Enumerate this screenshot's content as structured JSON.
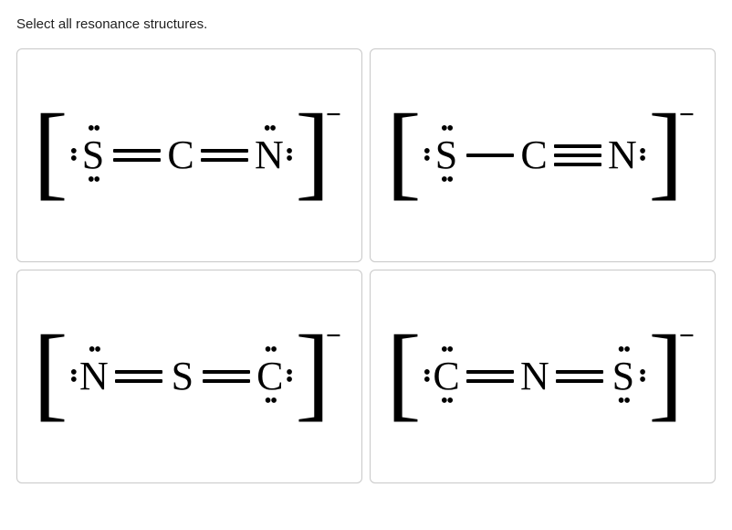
{
  "prompt": "Select all resonance structures.",
  "charge_symbol": "−",
  "cards": [
    {
      "id": "scn-dd",
      "bracket_left": "[",
      "bracket_right": "]",
      "atoms": [
        {
          "symbol": "S",
          "lp_top": true,
          "lp_bot": true,
          "lp_left": true,
          "lp_right": false
        },
        {
          "symbol": "C",
          "lp_top": false,
          "lp_bot": false,
          "lp_left": false,
          "lp_right": false
        },
        {
          "symbol": "N",
          "lp_top": true,
          "lp_bot": false,
          "lp_left": false,
          "lp_right": true
        }
      ],
      "bonds": [
        2,
        2
      ]
    },
    {
      "id": "scn-st",
      "bracket_left": "[",
      "bracket_right": "]",
      "atoms": [
        {
          "symbol": "S",
          "lp_top": true,
          "lp_bot": true,
          "lp_left": true,
          "lp_right": false
        },
        {
          "symbol": "C",
          "lp_top": false,
          "lp_bot": false,
          "lp_left": false,
          "lp_right": false
        },
        {
          "symbol": "N",
          "lp_top": false,
          "lp_bot": false,
          "lp_left": false,
          "lp_right": true
        }
      ],
      "bonds": [
        1,
        3
      ]
    },
    {
      "id": "nsc-dd",
      "bracket_left": "[",
      "bracket_right": "]",
      "atoms": [
        {
          "symbol": "N",
          "lp_top": true,
          "lp_bot": false,
          "lp_left": true,
          "lp_right": false
        },
        {
          "symbol": "S",
          "lp_top": false,
          "lp_bot": false,
          "lp_left": false,
          "lp_right": false
        },
        {
          "symbol": "C",
          "lp_top": true,
          "lp_bot": true,
          "lp_left": false,
          "lp_right": true
        }
      ],
      "bonds": [
        2,
        2
      ]
    },
    {
      "id": "cns-dd",
      "bracket_left": "[",
      "bracket_right": "]",
      "atoms": [
        {
          "symbol": "C",
          "lp_top": true,
          "lp_bot": true,
          "lp_left": true,
          "lp_right": false
        },
        {
          "symbol": "N",
          "lp_top": false,
          "lp_bot": false,
          "lp_left": false,
          "lp_right": false
        },
        {
          "symbol": "S",
          "lp_top": true,
          "lp_bot": true,
          "lp_left": false,
          "lp_right": true
        }
      ],
      "bonds": [
        2,
        2
      ]
    }
  ]
}
